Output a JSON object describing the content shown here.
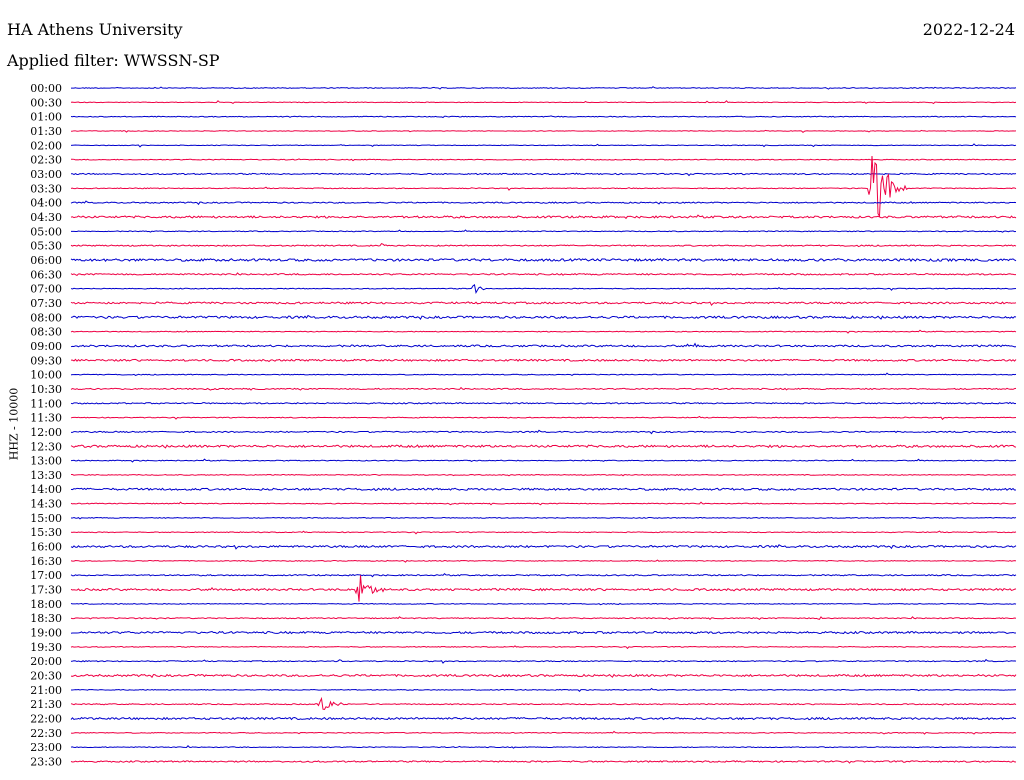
{
  "header": {
    "station": "HA Athens University",
    "filter": "Applied filter: WWSSN-SP",
    "date": "2022-12-24",
    "channel_label": "HHZ - 10000"
  },
  "colors": {
    "trace_a": "#0000cc",
    "trace_b": "#ee0044"
  },
  "chart_data": {
    "type": "line",
    "subtype": "helicorder",
    "title": "HA Athens University",
    "subtitle": "Applied filter: WWSSN-SP",
    "date": "2022-12-24",
    "ylabel": "HHZ - 10000",
    "row_interval_minutes": 30,
    "row_labels": [
      "00:00",
      "00:30",
      "01:00",
      "01:30",
      "02:00",
      "02:30",
      "03:00",
      "03:30",
      "04:00",
      "04:30",
      "05:00",
      "05:30",
      "06:00",
      "06:30",
      "07:00",
      "07:30",
      "08:00",
      "08:30",
      "09:00",
      "09:30",
      "10:00",
      "10:30",
      "11:00",
      "11:30",
      "12:00",
      "12:30",
      "13:00",
      "13:30",
      "14:00",
      "14:30",
      "15:00",
      "15:30",
      "16:00",
      "16:30",
      "17:00",
      "17:30",
      "18:00",
      "18:30",
      "19:00",
      "19:30",
      "20:00",
      "20:30",
      "21:00",
      "21:30",
      "22:00",
      "22:30",
      "23:00",
      "23:30"
    ],
    "series_colors": [
      "#0000cc",
      "#ee0044"
    ],
    "noise_level": [
      0.4,
      0.3,
      0.4,
      0.3,
      0.3,
      0.4,
      0.6,
      0.4,
      0.6,
      1.0,
      0.4,
      0.6,
      1.2,
      0.7,
      0.4,
      0.9,
      1.1,
      0.4,
      0.9,
      0.9,
      0.4,
      0.6,
      0.6,
      0.4,
      0.6,
      1.1,
      0.4,
      0.4,
      1.0,
      0.4,
      0.4,
      0.4,
      1.0,
      0.4,
      0.6,
      1.0,
      0.4,
      0.5,
      1.0,
      0.4,
      0.5,
      1.0,
      0.4,
      0.5,
      1.0,
      0.4,
      0.4,
      0.7
    ],
    "events": [
      {
        "row": 7,
        "x_minutes": 25.4,
        "amplitude": 55,
        "duration_minutes": 1.2
      },
      {
        "row": 11,
        "x_minutes": 9.8,
        "amplitude": 3,
        "duration_minutes": 0.6
      },
      {
        "row": 14,
        "x_minutes": 12.8,
        "amplitude": 7,
        "duration_minutes": 0.4
      },
      {
        "row": 18,
        "x_minutes": 19.8,
        "amplitude": 5,
        "duration_minutes": 0.5
      },
      {
        "row": 35,
        "x_minutes": 9.1,
        "amplitude": 20,
        "duration_minutes": 0.9
      },
      {
        "row": 37,
        "x_minutes": 2.7,
        "amplitude": 2,
        "duration_minutes": 0.3
      },
      {
        "row": 37,
        "x_minutes": 23.7,
        "amplitude": 2,
        "duration_minutes": 0.4
      },
      {
        "row": 40,
        "x_minutes": 8.5,
        "amplitude": 2,
        "duration_minutes": 0.2
      },
      {
        "row": 43,
        "x_minutes": 7.9,
        "amplitude": 9,
        "duration_minutes": 0.9
      }
    ]
  }
}
